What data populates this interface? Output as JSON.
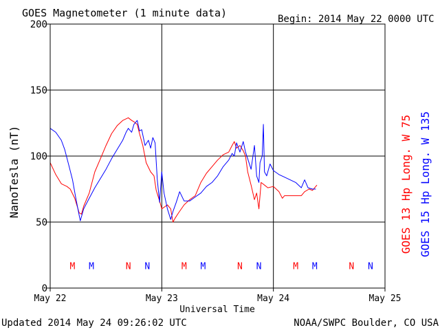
{
  "title": "GOES Magnetometer (1 minute data)",
  "begin": "Begin:  2014 May 22 0000 UTC",
  "footer": {
    "updated": "Updated 2014 May 24 09:26:02 UTC",
    "credit": "NOAA/SWPC Boulder, CO USA"
  },
  "colors": {
    "goes13": "#ff0000",
    "goes15": "#0000ff",
    "axis": "#000000"
  },
  "chart_data": {
    "type": "line",
    "xlabel": "Universal Time",
    "ylabel": "NanoTesla (nT)",
    "ylim": [
      0,
      200
    ],
    "yticks": [
      0,
      50,
      100,
      150,
      200
    ],
    "xlim": [
      0,
      3
    ],
    "xticks": [
      {
        "x": 0,
        "label": "May 22"
      },
      {
        "x": 1,
        "label": "May 23"
      },
      {
        "x": 2,
        "label": "May 24"
      },
      {
        "x": 3,
        "label": "May 25"
      }
    ],
    "grid": true,
    "series": [
      {
        "name": "GOES 13 Hp  Long. W 75",
        "color": "#ff0000",
        "points": [
          [
            0.0,
            95
          ],
          [
            0.05,
            86
          ],
          [
            0.1,
            79
          ],
          [
            0.15,
            77
          ],
          [
            0.18,
            75
          ],
          [
            0.22,
            68
          ],
          [
            0.26,
            57
          ],
          [
            0.28,
            56
          ],
          [
            0.3,
            62
          ],
          [
            0.35,
            72
          ],
          [
            0.4,
            88
          ],
          [
            0.45,
            98
          ],
          [
            0.5,
            108
          ],
          [
            0.55,
            117
          ],
          [
            0.6,
            123
          ],
          [
            0.65,
            127
          ],
          [
            0.7,
            129
          ],
          [
            0.73,
            127
          ],
          [
            0.75,
            126
          ],
          [
            0.78,
            124
          ],
          [
            0.8,
            117
          ],
          [
            0.83,
            108
          ],
          [
            0.86,
            95
          ],
          [
            0.9,
            88
          ],
          [
            0.93,
            85
          ],
          [
            0.95,
            74
          ],
          [
            0.98,
            66
          ],
          [
            1.0,
            60
          ],
          [
            1.05,
            63
          ],
          [
            1.08,
            60
          ],
          [
            1.1,
            50
          ],
          [
            1.12,
            53
          ],
          [
            1.15,
            57
          ],
          [
            1.2,
            63
          ],
          [
            1.25,
            67
          ],
          [
            1.3,
            70
          ],
          [
            1.35,
            80
          ],
          [
            1.4,
            87
          ],
          [
            1.45,
            92
          ],
          [
            1.5,
            97
          ],
          [
            1.55,
            101
          ],
          [
            1.6,
            103
          ],
          [
            1.63,
            108
          ],
          [
            1.65,
            111
          ],
          [
            1.67,
            106
          ],
          [
            1.7,
            108
          ],
          [
            1.73,
            104
          ],
          [
            1.75,
            100
          ],
          [
            1.77,
            88
          ],
          [
            1.8,
            78
          ],
          [
            1.83,
            67
          ],
          [
            1.85,
            72
          ],
          [
            1.87,
            60
          ],
          [
            1.89,
            80
          ],
          [
            1.92,
            78
          ],
          [
            1.95,
            76
          ],
          [
            2.0,
            77
          ],
          [
            2.05,
            73
          ],
          [
            2.08,
            68
          ],
          [
            2.1,
            70
          ],
          [
            2.15,
            70
          ],
          [
            2.2,
            70
          ],
          [
            2.25,
            70
          ],
          [
            2.28,
            73
          ],
          [
            2.32,
            75
          ],
          [
            2.35,
            74
          ],
          [
            2.39,
            78
          ]
        ]
      },
      {
        "name": "GOES 15 Hp  Long. W 135",
        "color": "#0000ff",
        "points": [
          [
            0.0,
            121
          ],
          [
            0.05,
            118
          ],
          [
            0.1,
            112
          ],
          [
            0.13,
            105
          ],
          [
            0.17,
            92
          ],
          [
            0.2,
            82
          ],
          [
            0.23,
            68
          ],
          [
            0.26,
            55
          ],
          [
            0.27,
            51
          ],
          [
            0.3,
            60
          ],
          [
            0.35,
            68
          ],
          [
            0.4,
            76
          ],
          [
            0.45,
            83
          ],
          [
            0.5,
            90
          ],
          [
            0.55,
            98
          ],
          [
            0.6,
            105
          ],
          [
            0.65,
            112
          ],
          [
            0.68,
            118
          ],
          [
            0.7,
            121
          ],
          [
            0.73,
            118
          ],
          [
            0.75,
            124
          ],
          [
            0.78,
            127
          ],
          [
            0.8,
            119
          ],
          [
            0.82,
            120
          ],
          [
            0.85,
            108
          ],
          [
            0.88,
            112
          ],
          [
            0.9,
            106
          ],
          [
            0.92,
            114
          ],
          [
            0.94,
            110
          ],
          [
            0.96,
            82
          ],
          [
            0.98,
            65
          ],
          [
            1.0,
            88
          ],
          [
            1.02,
            72
          ],
          [
            1.05,
            60
          ],
          [
            1.08,
            52
          ],
          [
            1.1,
            58
          ],
          [
            1.13,
            65
          ],
          [
            1.16,
            73
          ],
          [
            1.2,
            66
          ],
          [
            1.25,
            66
          ],
          [
            1.3,
            69
          ],
          [
            1.35,
            72
          ],
          [
            1.4,
            77
          ],
          [
            1.45,
            80
          ],
          [
            1.5,
            85
          ],
          [
            1.55,
            92
          ],
          [
            1.6,
            97
          ],
          [
            1.63,
            102
          ],
          [
            1.65,
            100
          ],
          [
            1.67,
            110
          ],
          [
            1.7,
            103
          ],
          [
            1.73,
            111
          ],
          [
            1.75,
            103
          ],
          [
            1.77,
            98
          ],
          [
            1.8,
            90
          ],
          [
            1.83,
            108
          ],
          [
            1.85,
            85
          ],
          [
            1.87,
            80
          ],
          [
            1.88,
            95
          ],
          [
            1.9,
            100
          ],
          [
            1.91,
            124
          ],
          [
            1.92,
            88
          ],
          [
            1.94,
            85
          ],
          [
            1.97,
            94
          ],
          [
            2.0,
            89
          ],
          [
            2.05,
            86
          ],
          [
            2.1,
            84
          ],
          [
            2.15,
            82
          ],
          [
            2.2,
            80
          ],
          [
            2.25,
            76
          ],
          [
            2.28,
            82
          ],
          [
            2.31,
            76
          ],
          [
            2.35,
            75
          ],
          [
            2.38,
            75
          ]
        ]
      }
    ],
    "markers": [
      {
        "x": 0.2,
        "label": "M",
        "series": 0
      },
      {
        "x": 0.37,
        "label": "M",
        "series": 1
      },
      {
        "x": 0.7,
        "label": "N",
        "series": 0
      },
      {
        "x": 0.87,
        "label": "N",
        "series": 1
      },
      {
        "x": 1.2,
        "label": "M",
        "series": 0
      },
      {
        "x": 1.37,
        "label": "M",
        "series": 1
      },
      {
        "x": 1.7,
        "label": "N",
        "series": 0
      },
      {
        "x": 1.87,
        "label": "N",
        "series": 1
      },
      {
        "x": 2.2,
        "label": "M",
        "series": 0
      },
      {
        "x": 2.37,
        "label": "M",
        "series": 1
      },
      {
        "x": 2.7,
        "label": "N",
        "series": 0
      },
      {
        "x": 2.87,
        "label": "N",
        "series": 1
      }
    ],
    "marker_level": 17
  }
}
